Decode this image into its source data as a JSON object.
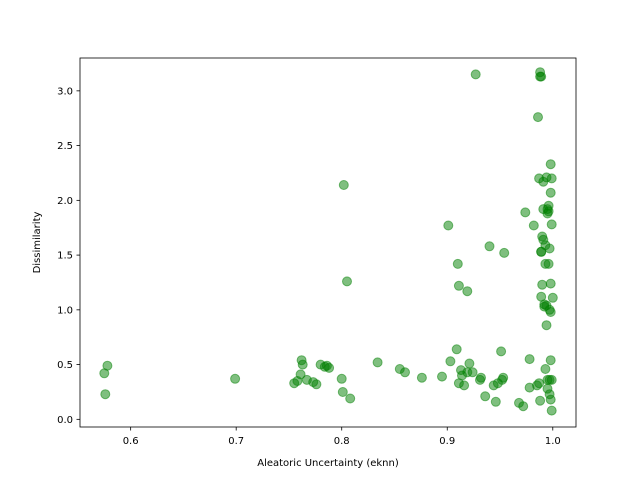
{
  "chart_data": {
    "type": "scatter",
    "title": "",
    "xlabel": "Aleatoric Uncertainty (eknn)",
    "ylabel": "Dissimilarity",
    "xlim": [
      0.552,
      1.022
    ],
    "ylim": [
      -0.07,
      3.3
    ],
    "xticks": [
      0.6,
      0.7,
      0.8,
      0.9,
      1.0
    ],
    "xtick_labels": [
      "0.6",
      "0.7",
      "0.8",
      "0.9",
      "1.0"
    ],
    "yticks": [
      0.0,
      0.5,
      1.0,
      1.5,
      2.0,
      2.5,
      3.0
    ],
    "ytick_labels": [
      "0.0",
      "0.5",
      "1.0",
      "1.5",
      "2.0",
      "2.5",
      "3.0"
    ],
    "grid": false,
    "legend": "none",
    "marker_color": "#008000",
    "marker_alpha": 0.5,
    "points": [
      [
        0.575,
        0.42
      ],
      [
        0.578,
        0.49
      ],
      [
        0.576,
        0.23
      ],
      [
        0.699,
        0.37
      ],
      [
        0.755,
        0.33
      ],
      [
        0.758,
        0.35
      ],
      [
        0.761,
        0.41
      ],
      [
        0.762,
        0.54
      ],
      [
        0.763,
        0.5
      ],
      [
        0.767,
        0.36
      ],
      [
        0.773,
        0.34
      ],
      [
        0.776,
        0.32
      ],
      [
        0.78,
        0.5
      ],
      [
        0.784,
        0.48
      ],
      [
        0.786,
        0.49
      ],
      [
        0.788,
        0.47
      ],
      [
        0.8,
        0.37
      ],
      [
        0.801,
        0.25
      ],
      [
        0.802,
        2.14
      ],
      [
        0.805,
        1.26
      ],
      [
        0.808,
        0.19
      ],
      [
        0.834,
        0.52
      ],
      [
        0.855,
        0.46
      ],
      [
        0.86,
        0.43
      ],
      [
        0.876,
        0.38
      ],
      [
        0.895,
        0.39
      ],
      [
        0.901,
        1.77
      ],
      [
        0.903,
        0.53
      ],
      [
        0.909,
        0.64
      ],
      [
        0.91,
        1.42
      ],
      [
        0.911,
        0.33
      ],
      [
        0.911,
        1.22
      ],
      [
        0.913,
        0.45
      ],
      [
        0.914,
        0.4
      ],
      [
        0.916,
        0.31
      ],
      [
        0.919,
        1.17
      ],
      [
        0.919,
        0.43
      ],
      [
        0.921,
        0.51
      ],
      [
        0.924,
        0.43
      ],
      [
        0.927,
        3.15
      ],
      [
        0.931,
        0.36
      ],
      [
        0.932,
        0.38
      ],
      [
        0.936,
        0.21
      ],
      [
        0.94,
        1.58
      ],
      [
        0.944,
        0.31
      ],
      [
        0.946,
        0.16
      ],
      [
        0.948,
        0.33
      ],
      [
        0.951,
        0.62
      ],
      [
        0.952,
        0.36
      ],
      [
        0.953,
        0.38
      ],
      [
        0.954,
        1.52
      ],
      [
        0.968,
        0.15
      ],
      [
        0.972,
        0.12
      ],
      [
        0.974,
        1.89
      ],
      [
        0.978,
        0.29
      ],
      [
        0.978,
        0.55
      ],
      [
        0.982,
        1.77
      ],
      [
        0.985,
        0.31
      ],
      [
        0.986,
        2.76
      ],
      [
        0.987,
        0.33
      ],
      [
        0.987,
        2.2
      ],
      [
        0.988,
        3.13
      ],
      [
        0.988,
        0.17
      ],
      [
        0.988,
        3.17
      ],
      [
        0.989,
        1.53
      ],
      [
        0.989,
        3.13
      ],
      [
        0.989,
        1.12
      ],
      [
        0.989,
        1.53
      ],
      [
        0.99,
        1.67
      ],
      [
        0.99,
        1.23
      ],
      [
        0.991,
        1.64
      ],
      [
        0.991,
        2.17
      ],
      [
        0.991,
        1.92
      ],
      [
        0.992,
        1.05
      ],
      [
        0.992,
        1.03
      ],
      [
        0.993,
        0.46
      ],
      [
        0.993,
        1.42
      ],
      [
        0.993,
        1.59
      ],
      [
        0.994,
        0.86
      ],
      [
        0.994,
        2.21
      ],
      [
        0.994,
        1.04
      ],
      [
        0.995,
        1.92
      ],
      [
        0.995,
        0.36
      ],
      [
        0.995,
        1.88
      ],
      [
        0.995,
        0.28
      ],
      [
        0.996,
        1.42
      ],
      [
        0.996,
        1.95
      ],
      [
        0.996,
        1.9
      ],
      [
        0.997,
        1.0
      ],
      [
        0.997,
        0.23
      ],
      [
        0.997,
        0.36
      ],
      [
        0.997,
        1.56
      ],
      [
        0.998,
        1.24
      ],
      [
        0.998,
        2.33
      ],
      [
        0.998,
        0.98
      ],
      [
        0.998,
        0.54
      ],
      [
        0.998,
        2.07
      ],
      [
        0.998,
        0.18
      ],
      [
        0.999,
        2.2
      ],
      [
        0.999,
        0.08
      ],
      [
        0.999,
        1.78
      ],
      [
        0.999,
        0.36
      ],
      [
        1.0,
        1.11
      ]
    ]
  }
}
